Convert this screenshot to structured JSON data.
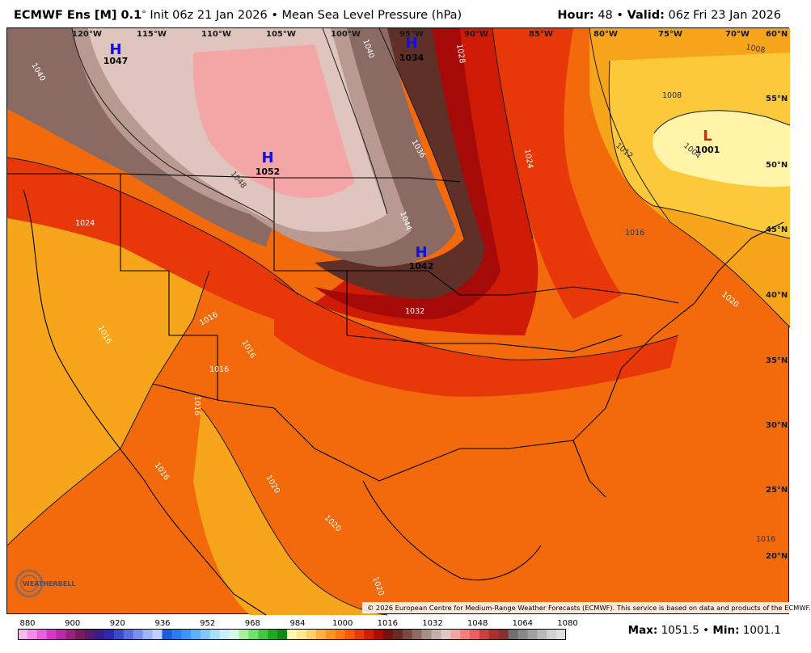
{
  "header": {
    "model": "ECMWF Ens [M] 0.1",
    "degree": "°",
    "init": " Init 06z 21 Jan 2026",
    "bullet": " • ",
    "field": "Mean Sea Level Pressure (hPa)",
    "hour_label": "Hour:",
    "hour_value": " 48 ",
    "valid_label": "Valid:",
    "valid_value": " 06z Fri 23 Jan 2026"
  },
  "map": {
    "longitude_labels": [
      "120°W",
      "115°W",
      "110°W",
      "105°W",
      "100°W",
      "95°W",
      "90°W",
      "85°W",
      "80°W",
      "75°W",
      "70°W",
      "60°N"
    ],
    "latitude_labels": [
      "55°N",
      "50°N",
      "45°N",
      "40°N",
      "35°N",
      "30°N",
      "25°N",
      "20°N"
    ],
    "pressure_centers": [
      {
        "type": "H",
        "value": "1047"
      },
      {
        "type": "H",
        "value": "1034"
      },
      {
        "type": "H",
        "value": "1052"
      },
      {
        "type": "H",
        "value": "1042"
      },
      {
        "type": "L",
        "value": "1001"
      }
    ],
    "isobar_labels": [
      "1040",
      "1040",
      "1028",
      "1008",
      "1008",
      "1036",
      "1024",
      "1012",
      "1004",
      "1048",
      "1044",
      "1024",
      "1016",
      "1020",
      "1016",
      "1032",
      "1016",
      "1016",
      "1016",
      "1016",
      "1020",
      "1016",
      "1020",
      "1020",
      "1016"
    ],
    "copyright": "© 2026 European Centre for Medium-Range Weather Forecasts (ECMWF). This service is based on data and products of the ECMWF.",
    "logo_text": "WEATHERBELL",
    "colors": {
      "ocean_base": "#f26a0c",
      "high_core": "#f4a6a6",
      "low_core": "#fff4a8",
      "contour": "#1a1a1a"
    }
  },
  "colorbar": {
    "ticks": [
      "880",
      "900",
      "920",
      "936",
      "952",
      "968",
      "984",
      "1000",
      "1016",
      "1032",
      "1048",
      "1064",
      "1080"
    ],
    "colors": [
      "#f7b8f0",
      "#f08ee8",
      "#e860e0",
      "#d838c8",
      "#b82aa8",
      "#98207f",
      "#7a1860",
      "#561a6e",
      "#3a1a8c",
      "#2a2ab0",
      "#3c48c8",
      "#5a6ee0",
      "#7a90ec",
      "#a0b4f4",
      "#c0d0fa",
      "#1a5ee0",
      "#2a7af0",
      "#3c96f8",
      "#5ab0fa",
      "#80c8fa",
      "#a8e0fc",
      "#c8f0fa",
      "#d8f8e8",
      "#a8f0a0",
      "#70e070",
      "#40c840",
      "#20a820",
      "#108a10",
      "#fff8b0",
      "#ffe890",
      "#ffd070",
      "#ffb040",
      "#ff9420",
      "#ff7810",
      "#f85a08",
      "#e83a06",
      "#d01c04",
      "#b00a04",
      "#7a1010",
      "#6a2a22",
      "#7a4a42",
      "#906a62",
      "#a8908a",
      "#c0b0aa",
      "#e0c8c4",
      "#f4a6a6",
      "#f08080",
      "#e86060",
      "#c84040",
      "#a83030",
      "#883030",
      "#707070",
      "#888888",
      "#a0a0a0",
      "#b8b8b8",
      "#d0d0d0",
      "#e0e0e0"
    ]
  },
  "stats": {
    "max_label": "Max:",
    "max_value": " 1051.5 ",
    "min_label": "Min:",
    "min_value": " 1001.1"
  }
}
